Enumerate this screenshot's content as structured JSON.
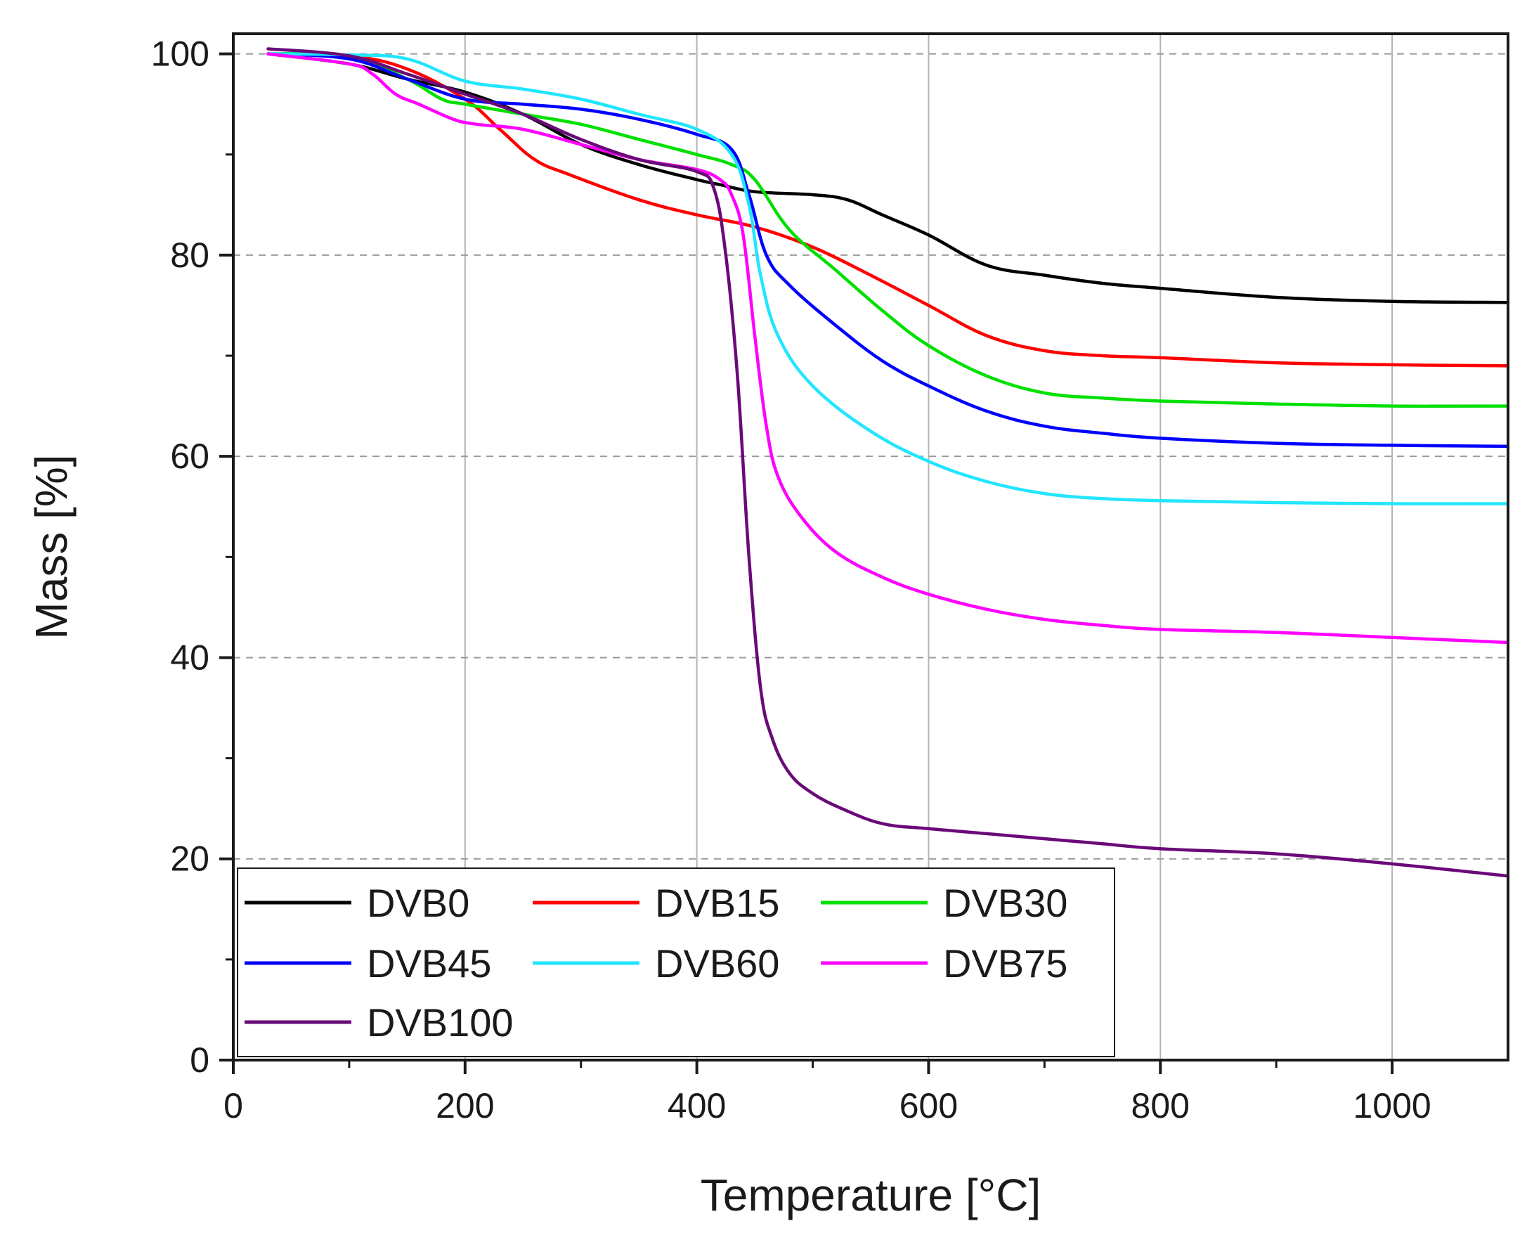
{
  "chart_data": {
    "type": "line",
    "title": "",
    "xlabel": "Temperature [°C]",
    "ylabel": "Mass [%]",
    "xlim": [
      0,
      1100
    ],
    "ylim": [
      0,
      102
    ],
    "xticks": [
      0,
      200,
      400,
      600,
      800,
      1000
    ],
    "yticks": [
      0,
      20,
      40,
      60,
      80,
      100
    ],
    "grid": true,
    "legend_position": "bottom-left",
    "series": [
      {
        "name": "DVB0",
        "color": "#000000",
        "x": [
          30,
          100,
          150,
          200,
          250,
          300,
          350,
          400,
          420,
          450,
          500,
          530,
          560,
          600,
          650,
          700,
          750,
          800,
          900,
          1000,
          1100
        ],
        "y": [
          100,
          99,
          97.5,
          96.2,
          94,
          91,
          89,
          87.5,
          87,
          86.3,
          86,
          85.5,
          84,
          82,
          79,
          78,
          77.2,
          76.7,
          75.8,
          75.4,
          75.3
        ]
      },
      {
        "name": "DVB15",
        "color": "#ff0000",
        "x": [
          30,
          100,
          150,
          200,
          230,
          260,
          290,
          350,
          400,
          450,
          500,
          550,
          600,
          650,
          700,
          750,
          800,
          900,
          1000,
          1100
        ],
        "y": [
          100,
          99.8,
          98.5,
          95.5,
          92.5,
          89.5,
          88,
          85.5,
          84,
          82.8,
          80.8,
          78,
          75,
          72,
          70.5,
          70,
          69.8,
          69.3,
          69.1,
          69
        ]
      },
      {
        "name": "DVB30",
        "color": "#00e000",
        "x": [
          30,
          100,
          150,
          180,
          200,
          250,
          300,
          350,
          400,
          430,
          450,
          480,
          520,
          560,
          600,
          650,
          700,
          750,
          800,
          900,
          1000,
          1100
        ],
        "y": [
          100,
          99.8,
          97.5,
          95.5,
          95,
          94,
          93,
          91.5,
          90,
          89,
          87.5,
          82.5,
          78.5,
          74.5,
          71,
          68,
          66.3,
          65.8,
          65.5,
          65.2,
          65,
          65
        ]
      },
      {
        "name": "DVB45",
        "color": "#0000ff",
        "x": [
          30,
          100,
          150,
          200,
          250,
          300,
          350,
          400,
          430,
          445,
          460,
          480,
          520,
          560,
          600,
          650,
          700,
          750,
          800,
          900,
          1000,
          1100
        ],
        "y": [
          100,
          99.5,
          97.5,
          95.5,
          95,
          94.5,
          93.5,
          92,
          90.5,
          86,
          80,
          77,
          73,
          69.5,
          67,
          64.5,
          63,
          62.3,
          61.8,
          61.3,
          61.1,
          61
        ]
      },
      {
        "name": "DVB60",
        "color": "#22e5ff",
        "x": [
          30,
          100,
          150,
          200,
          250,
          300,
          350,
          400,
          430,
          445,
          455,
          470,
          500,
          550,
          600,
          650,
          700,
          750,
          800,
          900,
          1000,
          1100
        ],
        "y": [
          100,
          99.9,
          99.5,
          97.3,
          96.5,
          95.5,
          94,
          92.5,
          90,
          85,
          78,
          72,
          67,
          62.5,
          59.5,
          57.5,
          56.3,
          55.8,
          55.6,
          55.4,
          55.3,
          55.3
        ]
      },
      {
        "name": "DVB75",
        "color": "#ff00ff",
        "x": [
          30,
          100,
          120,
          140,
          160,
          190,
          210,
          250,
          300,
          350,
          400,
          420,
          430,
          440,
          450,
          460,
          470,
          490,
          520,
          560,
          600,
          650,
          700,
          750,
          800,
          900,
          1000,
          1100
        ],
        "y": [
          100,
          99,
          98,
          96,
          95,
          93.5,
          93,
          92.5,
          91,
          89.5,
          88.5,
          87.5,
          86,
          82,
          72,
          63,
          58,
          54,
          50.5,
          48,
          46.3,
          44.8,
          43.8,
          43.2,
          42.8,
          42.5,
          42,
          41.5
        ]
      },
      {
        "name": "DVB100",
        "color": "#6a0a78",
        "x": [
          30,
          100,
          150,
          200,
          250,
          300,
          350,
          400,
          415,
          425,
          435,
          445,
          455,
          465,
          480,
          500,
          525,
          560,
          600,
          650,
          700,
          750,
          800,
          900,
          1000,
          1100
        ],
        "y": [
          100.5,
          99.8,
          98,
          96,
          94,
          91.5,
          89.5,
          88.3,
          86.5,
          80,
          68,
          50,
          37,
          32,
          28.5,
          26.5,
          25,
          23.5,
          23,
          22.5,
          22,
          21.5,
          21,
          20.5,
          19.5,
          18.3
        ]
      }
    ]
  }
}
